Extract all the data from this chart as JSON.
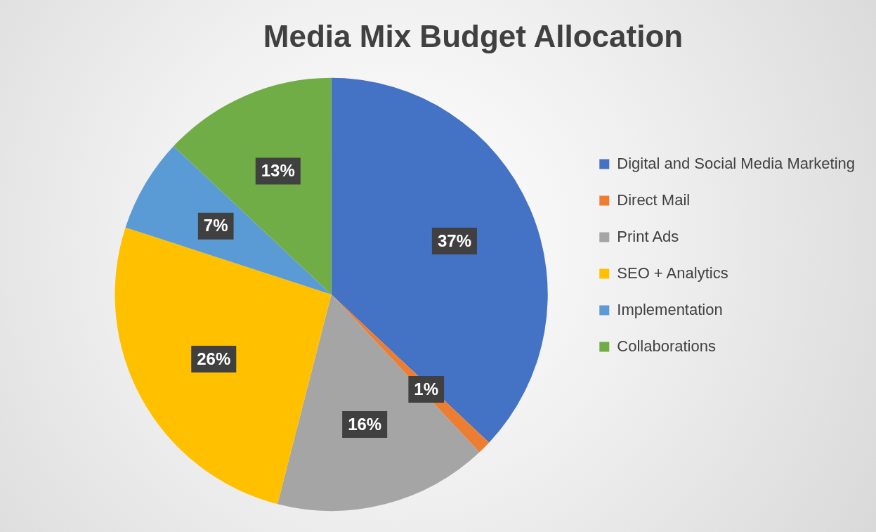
{
  "chart_data": {
    "type": "pie",
    "title": "Media Mix Budget Allocation",
    "categories": [
      "Digital and Social Media Marketing",
      "Direct Mail",
      "Print Ads",
      "SEO + Analytics",
      "Implementation",
      "Collaborations"
    ],
    "values": [
      37,
      1,
      16,
      26,
      7,
      13
    ],
    "colors": [
      "#4472c4",
      "#ed7d31",
      "#a5a5a5",
      "#ffc000",
      "#5b9bd5",
      "#70ad47"
    ],
    "value_labels": [
      "37%",
      "1%",
      "16%",
      "26%",
      "7%",
      "13%"
    ],
    "legend": "right"
  }
}
